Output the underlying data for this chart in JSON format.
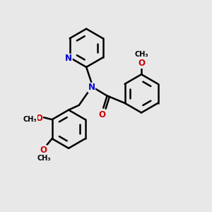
{
  "bg_color": "#e8e8e8",
  "bond_color": "#000000",
  "nitrogen_color": "#0000cc",
  "oxygen_color": "#cc0000",
  "line_width": 1.8,
  "fig_size": [
    3.0,
    3.0
  ],
  "dpi": 100,
  "xlim": [
    0,
    10
  ],
  "ylim": [
    0,
    10
  ],
  "font_size_atom": 8.5,
  "font_size_label": 7.5
}
